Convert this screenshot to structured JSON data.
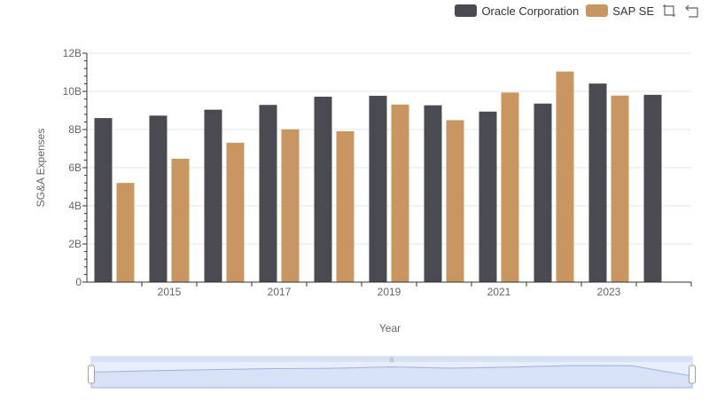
{
  "legend": {
    "items": [
      {
        "label": "Oracle Corporation",
        "color": "#4a4a52"
      },
      {
        "label": "SAP SE",
        "color": "#c99560"
      }
    ],
    "tools": [
      "zoom-icon",
      "restore-icon"
    ]
  },
  "chart_data": {
    "type": "bar",
    "x": [
      2014,
      2015,
      2016,
      2017,
      2018,
      2019,
      2020,
      2021,
      2022,
      2023,
      2024
    ],
    "x_tick_labels": [
      "2015",
      "2017",
      "2019",
      "2021",
      "2023"
    ],
    "xlabel": "Year",
    "ylabel": "SG&A Expenses",
    "ylim": [
      0,
      12000000000
    ],
    "y_tick_labels": [
      "0",
      "2B",
      "4B",
      "6B",
      "8B",
      "10B",
      "12B"
    ],
    "grid": true,
    "legend_position": "top-right",
    "series": [
      {
        "name": "Oracle Corporation",
        "color": "#4a4a52",
        "values": [
          8600000000,
          8730000000,
          9040000000,
          9290000000,
          9720000000,
          9770000000,
          9270000000,
          8940000000,
          9360000000,
          10410000000,
          9820000000
        ]
      },
      {
        "name": "SAP SE",
        "color": "#c99560",
        "values": [
          5200000000,
          6470000000,
          7310000000,
          8010000000,
          7910000000,
          9310000000,
          8490000000,
          9940000000,
          11040000000,
          9780000000,
          null
        ]
      }
    ],
    "datazoom": {
      "range_start_pct": 0,
      "range_end_pct": 100
    }
  }
}
